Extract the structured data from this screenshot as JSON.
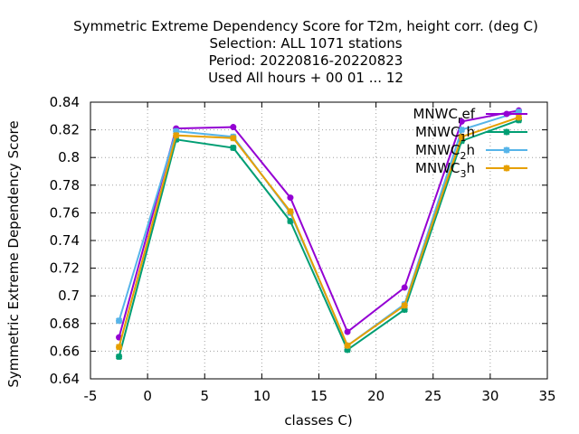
{
  "chart_data": {
    "type": "line",
    "title_lines": [
      "Symmetric Extreme Dependency Score  for T2m, height corr. (deg C)",
      "Selection: ALL   1071 stations",
      "Period: 20220816-20220823",
      "Used  All hours + 00 01 ... 12"
    ],
    "xlabel": "classes C)",
    "ylabel": "Symmetric Extreme Dependency Score",
    "xlim": [
      -5,
      35
    ],
    "ylim": [
      0.64,
      0.84
    ],
    "xticks": [
      -5,
      0,
      5,
      10,
      15,
      20,
      25,
      30,
      35
    ],
    "xtick_labels": [
      "-5",
      "0",
      "5",
      "10",
      "15",
      "20",
      "25",
      "30",
      "35"
    ],
    "yticks": [
      0.64,
      0.66,
      0.68,
      0.7,
      0.72,
      0.74,
      0.76,
      0.78,
      0.8,
      0.82,
      0.84
    ],
    "ytick_labels": [
      "0.64",
      "0.66",
      "0.68",
      "0.7",
      "0.72",
      "0.74",
      "0.76",
      "0.78",
      "0.8",
      "0.82",
      "0.84"
    ],
    "grid": true,
    "legend_position": "top-right",
    "x": [
      -2.5,
      2.5,
      7.5,
      12.5,
      17.5,
      22.5,
      27.5,
      32.5
    ],
    "series": [
      {
        "name_main": "MNWC",
        "name_sub": "r",
        "name_rest": "ef",
        "color": "#9400d3",
        "marker": "circle",
        "values": [
          0.67,
          0.821,
          0.822,
          0.771,
          0.674,
          0.706,
          0.826,
          0.834
        ]
      },
      {
        "name_main": "MNWC",
        "name_sub": "1",
        "name_rest": "h",
        "color": "#009e73",
        "marker": "cross",
        "values": [
          0.656,
          0.813,
          0.807,
          0.754,
          0.661,
          0.69,
          0.812,
          0.827
        ]
      },
      {
        "name_main": "MNWC",
        "name_sub": "2",
        "name_rest": "h",
        "color": "#56b4e9",
        "marker": "cross",
        "values": [
          0.682,
          0.819,
          0.815,
          0.76,
          0.664,
          0.694,
          0.82,
          0.833
        ]
      },
      {
        "name_main": "MNWC",
        "name_sub": "3",
        "name_rest": "h",
        "color": "#e69f00",
        "marker": "cross",
        "values": [
          0.663,
          0.816,
          0.814,
          0.761,
          0.664,
          0.693,
          0.815,
          0.829
        ]
      }
    ]
  }
}
